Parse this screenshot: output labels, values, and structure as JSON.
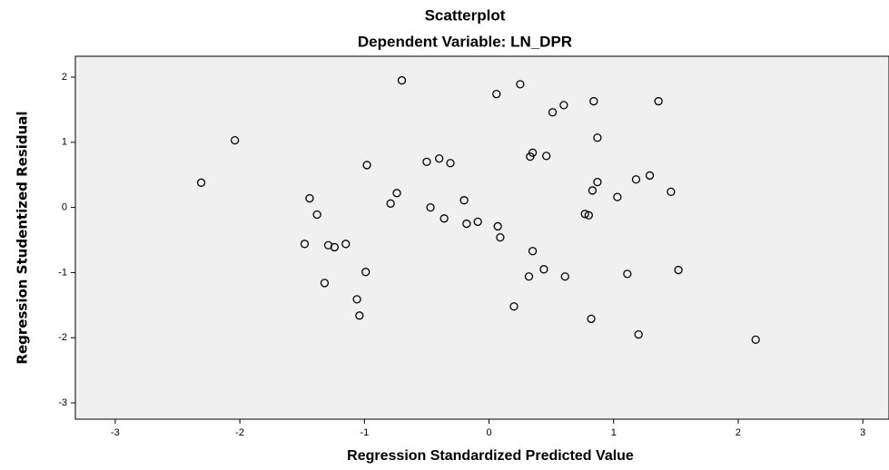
{
  "chart_data": {
    "type": "scatter",
    "title": "Scatterplot",
    "subtitle": "Dependent Variable: LN_DPR",
    "x_label": "Regression Standardized Predicted Value",
    "y_label": "Regression Studentized Residual",
    "x": [
      -2.31,
      -2.04,
      -0.7,
      0.06,
      0.25,
      0.6,
      0.84,
      1.36,
      0.51,
      0.87,
      -0.98,
      -0.5,
      -0.4,
      -0.31,
      0.35,
      0.33,
      0.46,
      0.87,
      0.83,
      1.18,
      1.29,
      1.03,
      1.46,
      -1.44,
      -0.74,
      -0.79,
      -0.2,
      -1.38,
      -0.47,
      -0.36,
      -0.18,
      -0.09,
      0.07,
      0.09,
      0.77,
      0.8,
      -1.48,
      -1.29,
      -1.24,
      -1.15,
      0.35,
      -0.99,
      -1.32,
      0.32,
      0.44,
      0.61,
      1.11,
      1.52,
      -1.06,
      -1.04,
      0.2,
      0.82,
      1.2,
      2.14
    ],
    "values": [
      0.38,
      1.03,
      1.95,
      1.74,
      1.89,
      1.57,
      1.63,
      1.63,
      1.46,
      1.07,
      0.65,
      0.7,
      0.75,
      0.68,
      0.84,
      0.78,
      0.79,
      0.39,
      0.26,
      0.43,
      0.49,
      0.16,
      0.24,
      0.14,
      0.22,
      0.06,
      0.11,
      -0.11,
      0.0,
      -0.17,
      -0.25,
      -0.22,
      -0.29,
      -0.46,
      -0.1,
      -0.12,
      -0.56,
      -0.58,
      -0.61,
      -0.56,
      -0.67,
      -0.99,
      -1.16,
      -1.06,
      -0.95,
      -1.06,
      -1.02,
      -0.96,
      -1.41,
      -1.66,
      -1.52,
      -1.71,
      -1.95,
      -2.03
    ],
    "color": "#000000",
    "background": "#f0f0f0",
    "xlim": [
      -3.32,
      3.21
    ],
    "ylim": [
      -3.25,
      2.32
    ],
    "xticks": [
      -3,
      -2,
      -1,
      0,
      1,
      2,
      3
    ],
    "yticks": [
      -3,
      -2,
      -1,
      0,
      1,
      2
    ]
  }
}
